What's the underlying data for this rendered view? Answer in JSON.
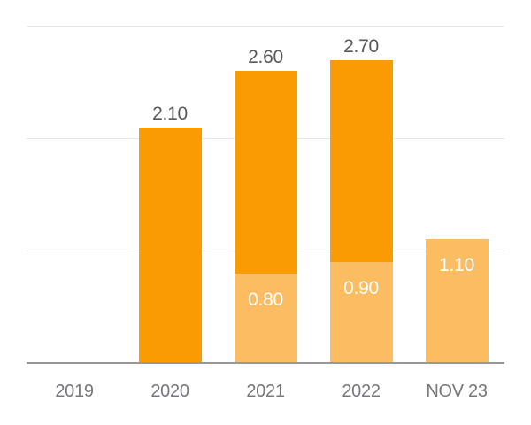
{
  "chart_data": {
    "type": "bar",
    "stacked": true,
    "title": "",
    "categories": [
      "2019",
      "2020",
      "2021",
      "2022",
      "NOV 23"
    ],
    "series": [
      {
        "name": "light-orange-bottom-segment",
        "color": "#FCBD62",
        "values": [
          0,
          0,
          0.8,
          0.9,
          1.1
        ]
      },
      {
        "name": "dark-orange-top-segment",
        "color": "#FB9B04",
        "values": [
          0,
          2.1,
          1.8,
          1.8,
          0
        ]
      }
    ],
    "totals": [
      0,
      2.1,
      2.6,
      2.7,
      1.1
    ],
    "total_labels": [
      "",
      "2.10",
      "2.60",
      "2.70",
      ""
    ],
    "segment_labels": [
      "",
      "",
      "0.80",
      "0.90",
      "1.10"
    ],
    "xlabel": "",
    "ylabel": "",
    "ylim": [
      0,
      3.24
    ],
    "gridlines": [
      1,
      2,
      3
    ],
    "grid": true,
    "legend": "none",
    "y_axis_labels_visible": false
  },
  "colors": {
    "background": "#FFFFFF",
    "bar_dark_orange": "#FB9B04",
    "bar_light_orange": "#FCBD62",
    "gridline": "#E7E7E7",
    "axis_line": "#97989A",
    "value_label": "#595959",
    "tick_label": "#77787B",
    "inside_label": "#FFFFFF"
  }
}
